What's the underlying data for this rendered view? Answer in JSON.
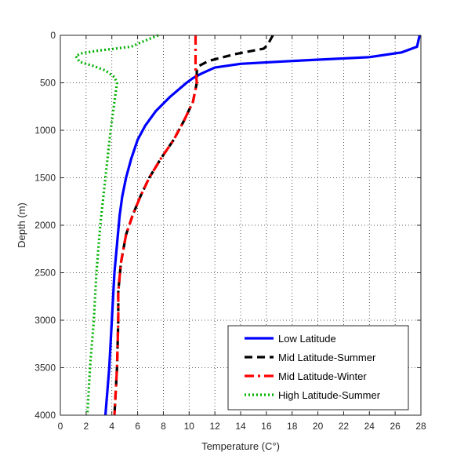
{
  "chart_data": {
    "type": "line",
    "xlabel": "Temperature (C°)",
    "ylabel": "Depth (m)",
    "xlim": [
      0,
      28
    ],
    "ylim": [
      0,
      4000
    ],
    "y_reversed": true,
    "x_ticks": [
      0,
      2,
      4,
      6,
      8,
      10,
      12,
      14,
      16,
      18,
      20,
      22,
      24,
      26,
      28
    ],
    "y_ticks": [
      0,
      500,
      1000,
      1500,
      2000,
      2500,
      3000,
      3500,
      4000
    ],
    "grid": true,
    "legend_position": "bottom-right",
    "series": [
      {
        "name": "Low Latitude",
        "color": "#0000ff",
        "dash": "solid",
        "points": [
          [
            27.9,
            0
          ],
          [
            27.7,
            120
          ],
          [
            26.5,
            180
          ],
          [
            24.0,
            230
          ],
          [
            18.0,
            270
          ],
          [
            14.0,
            300
          ],
          [
            12.0,
            340
          ],
          [
            11.0,
            400
          ],
          [
            10.3,
            450
          ],
          [
            9.8,
            500
          ],
          [
            8.5,
            650
          ],
          [
            7.4,
            800
          ],
          [
            6.6,
            950
          ],
          [
            6.0,
            1100
          ],
          [
            5.5,
            1300
          ],
          [
            5.1,
            1500
          ],
          [
            4.8,
            1700
          ],
          [
            4.6,
            1900
          ],
          [
            4.4,
            2200
          ],
          [
            4.2,
            2500
          ],
          [
            4.0,
            3000
          ],
          [
            3.8,
            3500
          ],
          [
            3.5,
            4000
          ]
        ]
      },
      {
        "name": "Mid Latitude-Summer",
        "color": "#000000",
        "dash": "dashed",
        "points": [
          [
            16.5,
            0
          ],
          [
            16.3,
            50
          ],
          [
            16.1,
            100
          ],
          [
            15.8,
            140
          ],
          [
            13.5,
            200
          ],
          [
            11.5,
            270
          ],
          [
            10.8,
            320
          ],
          [
            10.6,
            360
          ],
          [
            10.6,
            500
          ],
          [
            10.3,
            700
          ],
          [
            9.6,
            900
          ],
          [
            8.8,
            1100
          ],
          [
            7.8,
            1300
          ],
          [
            6.9,
            1500
          ],
          [
            6.2,
            1700
          ],
          [
            5.6,
            1900
          ],
          [
            5.1,
            2100
          ],
          [
            4.7,
            2400
          ],
          [
            4.5,
            2700
          ],
          [
            4.5,
            3000
          ],
          [
            4.4,
            3500
          ],
          [
            4.2,
            4000
          ]
        ]
      },
      {
        "name": "Mid Latitude-Winter",
        "color": "#ff0000",
        "dash": "dashdot",
        "points": [
          [
            10.5,
            0
          ],
          [
            10.5,
            200
          ],
          [
            10.5,
            350
          ],
          [
            10.6,
            500
          ],
          [
            10.3,
            700
          ],
          [
            9.6,
            900
          ],
          [
            8.8,
            1100
          ],
          [
            7.8,
            1300
          ],
          [
            6.9,
            1500
          ],
          [
            6.2,
            1700
          ],
          [
            5.6,
            1900
          ],
          [
            5.1,
            2100
          ],
          [
            4.7,
            2400
          ],
          [
            4.5,
            2700
          ],
          [
            4.5,
            3000
          ],
          [
            4.4,
            3500
          ],
          [
            4.2,
            4000
          ]
        ]
      },
      {
        "name": "High Latitude-Summer",
        "color": "#00b000",
        "dash": "dotted",
        "points": [
          [
            7.6,
            0
          ],
          [
            6.5,
            60
          ],
          [
            5.5,
            120
          ],
          [
            3.0,
            160
          ],
          [
            1.6,
            190
          ],
          [
            1.2,
            220
          ],
          [
            1.5,
            280
          ],
          [
            2.5,
            320
          ],
          [
            3.5,
            370
          ],
          [
            4.2,
            440
          ],
          [
            4.4,
            500
          ],
          [
            4.2,
            700
          ],
          [
            3.9,
            1000
          ],
          [
            3.5,
            1500
          ],
          [
            3.1,
            2000
          ],
          [
            2.8,
            2500
          ],
          [
            2.6,
            3000
          ],
          [
            2.3,
            3500
          ],
          [
            2.1,
            4000
          ]
        ]
      }
    ]
  }
}
